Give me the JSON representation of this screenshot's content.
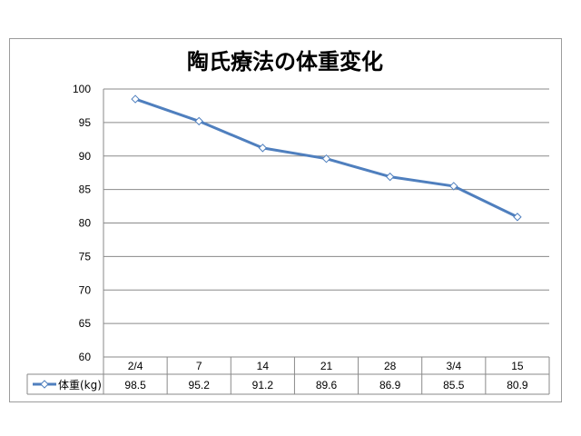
{
  "chart_data": {
    "type": "line",
    "title": "陶氏療法の体重変化",
    "categories": [
      "2/4",
      "7",
      "14",
      "21",
      "28",
      "3/4",
      "15"
    ],
    "series": [
      {
        "name": "体重(kg)",
        "values": [
          98.5,
          95.2,
          91.2,
          89.6,
          86.9,
          85.5,
          80.9
        ]
      }
    ],
    "y_ticks": [
      "100",
      "95",
      "90",
      "85",
      "80",
      "75",
      "70",
      "65",
      "60"
    ],
    "ylim": [
      60,
      100
    ],
    "grid": true,
    "legend": "data-table",
    "table_values": [
      "98.5",
      "95.2",
      "91.2",
      "89.6",
      "86.9",
      "85.5",
      "80.9"
    ],
    "series_color": "#4f7fbe",
    "marker": "diamond-hollow"
  }
}
